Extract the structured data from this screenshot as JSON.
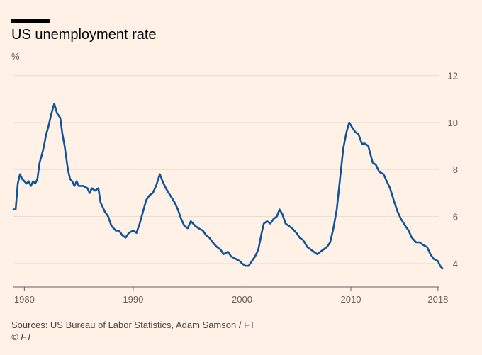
{
  "header": {
    "title": "US unemployment rate",
    "unit": "%"
  },
  "footer": {
    "source": "Sources: US Bureau of Labor Statistics, Adam Samson / FT",
    "copyright": "© FT"
  },
  "colors": {
    "background": "#fff1e5",
    "line": "#0f5499",
    "grid": "#e9ddd3",
    "axis": "#66605c"
  },
  "chart_data": {
    "type": "line",
    "title": "US unemployment rate",
    "xlabel": "",
    "ylabel": "%",
    "x_range": [
      1979.0,
      2018.4
    ],
    "ylim": [
      3,
      12.5
    ],
    "yticks": [
      4,
      6,
      8,
      10,
      12
    ],
    "xticks": [
      {
        "value": 1980,
        "label": "1980"
      },
      {
        "value": 1990,
        "label": "1990"
      },
      {
        "value": 2000,
        "label": "2000"
      },
      {
        "value": 2010,
        "label": "2010"
      },
      {
        "value": 2018,
        "label": "2018"
      }
    ],
    "grid": true,
    "y_axis_side": "right",
    "series": [
      {
        "color": "#0f5499",
        "points": [
          [
            1979.0,
            6.3
          ],
          [
            1979.2,
            6.3
          ],
          [
            1979.4,
            7.4
          ],
          [
            1979.6,
            7.8
          ],
          [
            1979.8,
            7.6
          ],
          [
            1980.0,
            7.5
          ],
          [
            1980.2,
            7.4
          ],
          [
            1980.4,
            7.5
          ],
          [
            1980.6,
            7.3
          ],
          [
            1980.8,
            7.5
          ],
          [
            1981.0,
            7.4
          ],
          [
            1981.2,
            7.6
          ],
          [
            1981.4,
            8.3
          ],
          [
            1981.6,
            8.6
          ],
          [
            1981.8,
            9.0
          ],
          [
            1982.0,
            9.5
          ],
          [
            1982.2,
            9.8
          ],
          [
            1982.5,
            10.4
          ],
          [
            1982.75,
            10.8
          ],
          [
            1983.0,
            10.4
          ],
          [
            1983.3,
            10.2
          ],
          [
            1983.5,
            9.5
          ],
          [
            1983.7,
            9.0
          ],
          [
            1984.0,
            8.0
          ],
          [
            1984.2,
            7.6
          ],
          [
            1984.4,
            7.5
          ],
          [
            1984.6,
            7.3
          ],
          [
            1984.8,
            7.5
          ],
          [
            1985.0,
            7.3
          ],
          [
            1985.4,
            7.3
          ],
          [
            1985.8,
            7.2
          ],
          [
            1986.0,
            7.0
          ],
          [
            1986.2,
            7.2
          ],
          [
            1986.5,
            7.1
          ],
          [
            1986.8,
            7.2
          ],
          [
            1987.0,
            6.6
          ],
          [
            1987.4,
            6.2
          ],
          [
            1987.7,
            6.0
          ],
          [
            1988.0,
            5.6
          ],
          [
            1988.4,
            5.4
          ],
          [
            1988.7,
            5.4
          ],
          [
            1989.0,
            5.2
          ],
          [
            1989.3,
            5.1
          ],
          [
            1989.6,
            5.3
          ],
          [
            1990.0,
            5.4
          ],
          [
            1990.3,
            5.3
          ],
          [
            1990.6,
            5.7
          ],
          [
            1990.9,
            6.2
          ],
          [
            1991.2,
            6.7
          ],
          [
            1991.5,
            6.9
          ],
          [
            1991.8,
            7.0
          ],
          [
            1992.1,
            7.3
          ],
          [
            1992.45,
            7.8
          ],
          [
            1992.7,
            7.5
          ],
          [
            1993.0,
            7.2
          ],
          [
            1993.4,
            6.9
          ],
          [
            1993.8,
            6.6
          ],
          [
            1994.1,
            6.3
          ],
          [
            1994.4,
            5.9
          ],
          [
            1994.7,
            5.6
          ],
          [
            1995.0,
            5.5
          ],
          [
            1995.3,
            5.8
          ],
          [
            1995.7,
            5.6
          ],
          [
            1996.0,
            5.5
          ],
          [
            1996.4,
            5.4
          ],
          [
            1996.7,
            5.2
          ],
          [
            1997.0,
            5.1
          ],
          [
            1997.3,
            4.9
          ],
          [
            1997.7,
            4.7
          ],
          [
            1998.0,
            4.6
          ],
          [
            1998.3,
            4.4
          ],
          [
            1998.7,
            4.5
          ],
          [
            1999.0,
            4.3
          ],
          [
            1999.4,
            4.2
          ],
          [
            1999.8,
            4.1
          ],
          [
            2000.0,
            4.0
          ],
          [
            2000.3,
            3.9
          ],
          [
            2000.6,
            3.9
          ],
          [
            2000.9,
            4.1
          ],
          [
            2001.2,
            4.3
          ],
          [
            2001.5,
            4.6
          ],
          [
            2001.8,
            5.3
          ],
          [
            2002.0,
            5.7
          ],
          [
            2002.3,
            5.8
          ],
          [
            2002.6,
            5.7
          ],
          [
            2002.9,
            5.9
          ],
          [
            2003.2,
            6.0
          ],
          [
            2003.45,
            6.3
          ],
          [
            2003.7,
            6.1
          ],
          [
            2004.0,
            5.7
          ],
          [
            2004.3,
            5.6
          ],
          [
            2004.6,
            5.5
          ],
          [
            2005.0,
            5.3
          ],
          [
            2005.3,
            5.1
          ],
          [
            2005.6,
            5.0
          ],
          [
            2006.0,
            4.7
          ],
          [
            2006.3,
            4.6
          ],
          [
            2006.6,
            4.5
          ],
          [
            2006.9,
            4.4
          ],
          [
            2007.2,
            4.5
          ],
          [
            2007.5,
            4.6
          ],
          [
            2007.8,
            4.7
          ],
          [
            2008.1,
            4.9
          ],
          [
            2008.4,
            5.5
          ],
          [
            2008.7,
            6.3
          ],
          [
            2009.0,
            7.6
          ],
          [
            2009.3,
            8.9
          ],
          [
            2009.6,
            9.6
          ],
          [
            2009.85,
            10.0
          ],
          [
            2010.1,
            9.8
          ],
          [
            2010.4,
            9.6
          ],
          [
            2010.7,
            9.5
          ],
          [
            2011.0,
            9.1
          ],
          [
            2011.3,
            9.1
          ],
          [
            2011.6,
            9.0
          ],
          [
            2012.0,
            8.3
          ],
          [
            2012.3,
            8.2
          ],
          [
            2012.6,
            7.9
          ],
          [
            2013.0,
            7.8
          ],
          [
            2013.3,
            7.5
          ],
          [
            2013.6,
            7.2
          ],
          [
            2014.0,
            6.6
          ],
          [
            2014.3,
            6.2
          ],
          [
            2014.6,
            5.9
          ],
          [
            2015.0,
            5.6
          ],
          [
            2015.3,
            5.4
          ],
          [
            2015.6,
            5.1
          ],
          [
            2016.0,
            4.9
          ],
          [
            2016.3,
            4.9
          ],
          [
            2016.6,
            4.8
          ],
          [
            2017.0,
            4.7
          ],
          [
            2017.3,
            4.4
          ],
          [
            2017.6,
            4.2
          ],
          [
            2018.0,
            4.1
          ],
          [
            2018.2,
            3.9
          ],
          [
            2018.4,
            3.8
          ]
        ]
      }
    ]
  }
}
